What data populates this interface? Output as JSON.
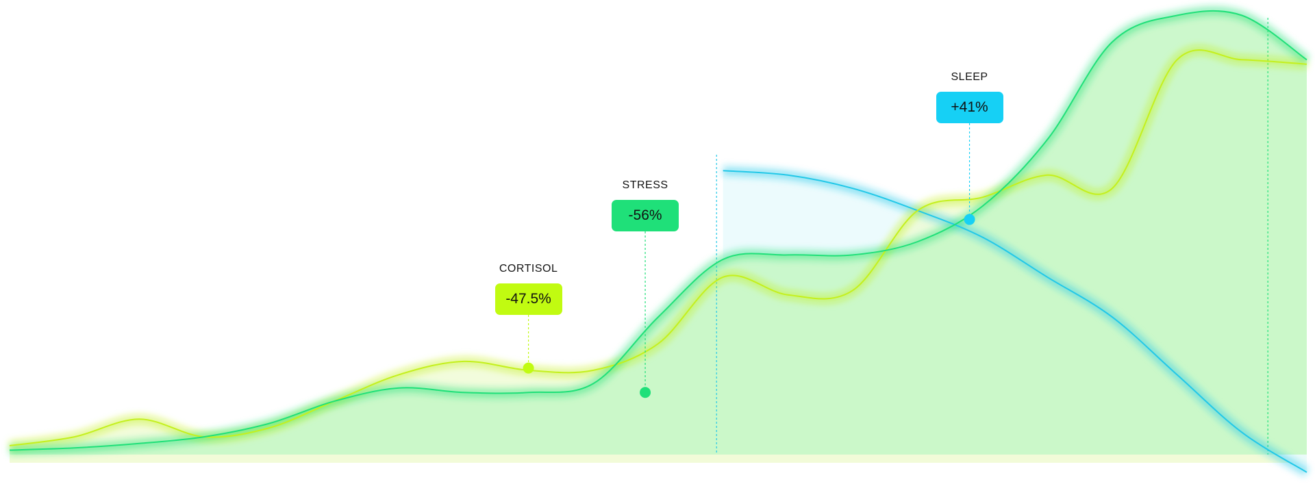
{
  "chart_data": {
    "type": "area",
    "title": "",
    "xlabel": "",
    "ylabel": "",
    "grid": false,
    "x": [
      0,
      5,
      10,
      15,
      20,
      25,
      30,
      35,
      40,
      45,
      50,
      55,
      60,
      65,
      70,
      75,
      80,
      85,
      90,
      95,
      100
    ],
    "xlim": [
      0,
      100
    ],
    "ylim": [
      0,
      100
    ],
    "series": [
      {
        "name": "",
        "color": "#1fe079",
        "fill": "#c6f7c6",
        "values": [
          1,
          1.5,
          2.5,
          4,
          7,
          12,
          15,
          14,
          14,
          16,
          31,
          44,
          45,
          45,
          48,
          56,
          71,
          93,
          99,
          99,
          89
        ]
      },
      {
        "name": "",
        "color": "#c4f01d",
        "fill": "#eefbd0",
        "values": [
          2,
          4,
          8,
          4,
          6,
          12,
          18,
          21,
          19,
          19,
          25,
          40,
          36,
          37,
          55,
          58,
          63,
          60,
          89,
          89,
          88
        ]
      },
      {
        "name": "",
        "color": "#22c8e8",
        "fill": "#eafbfd",
        "values": [
          null,
          null,
          null,
          null,
          null,
          null,
          null,
          null,
          null,
          null,
          null,
          64,
          63,
          60,
          55,
          49,
          40,
          31,
          18,
          5,
          -4
        ]
      }
    ],
    "annotations": [
      {
        "label": "CORTISOL",
        "value": "-47.5%",
        "x": 40,
        "y": 19.5,
        "color": "#c1fb11"
      },
      {
        "label": "STRESS",
        "value": "-56%",
        "x": 49,
        "y": 14,
        "color": "#1fe079"
      },
      {
        "label": "SLEEP",
        "value": "+41%",
        "x": 74,
        "y": 53,
        "color": "#16d0f5"
      }
    ],
    "markers": [
      {
        "x": 54.5,
        "color": "#22c8e8"
      },
      {
        "x": 97,
        "color": "#1fe079"
      }
    ]
  }
}
